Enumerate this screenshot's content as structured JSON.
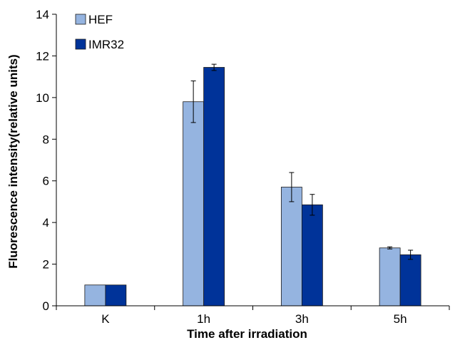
{
  "chart_data": {
    "type": "bar",
    "categories": [
      "K",
      "1h",
      "3h",
      "5h"
    ],
    "series": [
      {
        "name": "HEF",
        "values": [
          1.0,
          9.8,
          5.7,
          2.78
        ],
        "errors": [
          0.0,
          1.0,
          0.7,
          0.05
        ],
        "color": "#95b4e0"
      },
      {
        "name": "IMR32",
        "values": [
          1.0,
          11.45,
          4.85,
          2.45
        ],
        "errors": [
          0.0,
          0.15,
          0.5,
          0.22
        ],
        "color": "#003399"
      }
    ],
    "xlabel": "Time after irradiation",
    "ylabel": "Fluorescence intensity(relative units)",
    "ylim": [
      0,
      14
    ],
    "yticks": [
      "0",
      "2",
      "4",
      "6",
      "8",
      "10",
      "12",
      "14"
    ],
    "grid": false,
    "legend_position": "top-left"
  }
}
